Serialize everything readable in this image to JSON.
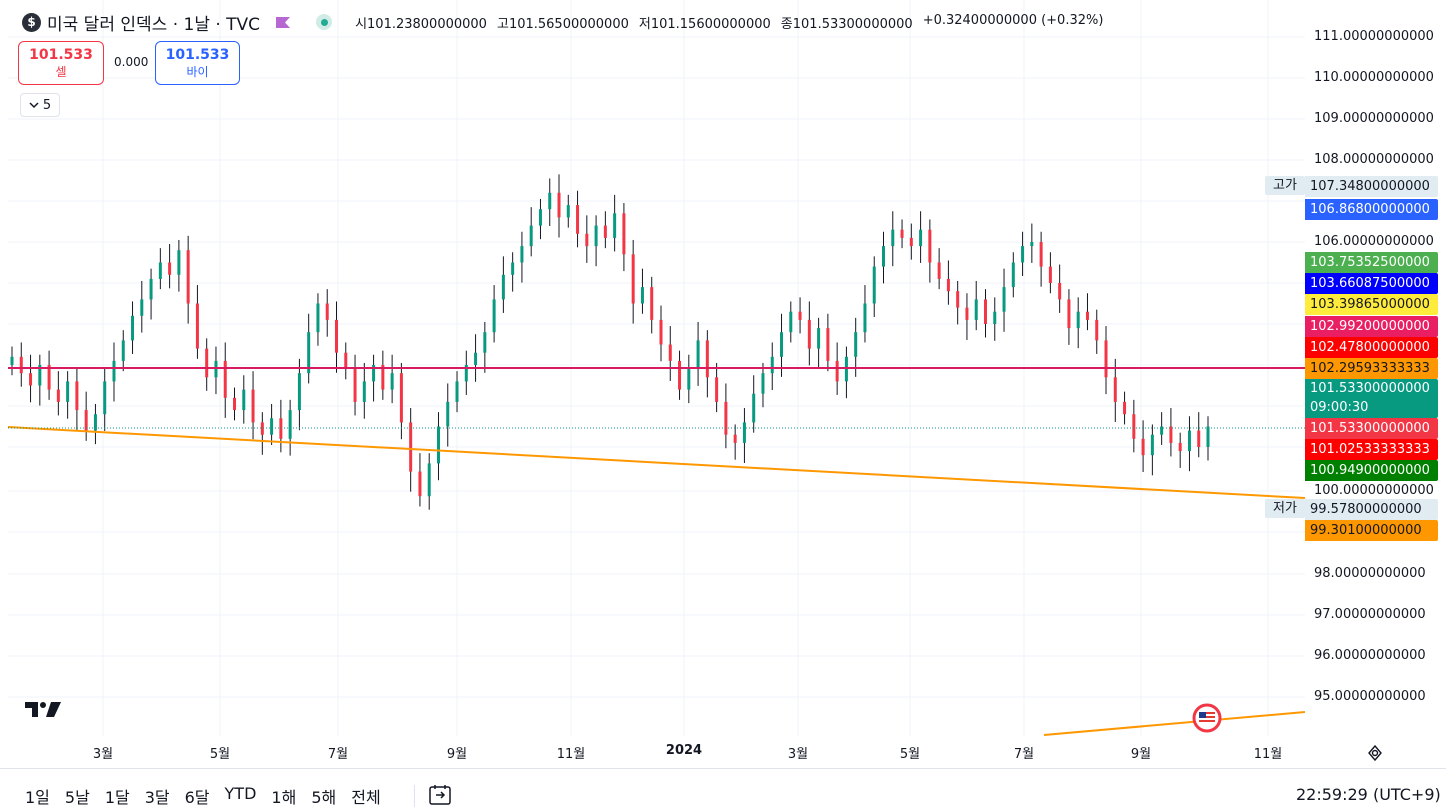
{
  "header": {
    "symbol_badge": "$",
    "symbol_title": "미국 달러 인덱스 · 1날 · TVC",
    "ohlc": [
      {
        "label": "시",
        "value": "101.23800000000"
      },
      {
        "label": "고",
        "value": "101.56500000000"
      },
      {
        "label": "저",
        "value": "101.15600000000"
      },
      {
        "label": "종",
        "value": "101.53300000000"
      }
    ],
    "change": "+0.32400000000 (+0.32%)",
    "flag_color": "#b667d1",
    "status_color": "#22ab94"
  },
  "trade": {
    "sell_price": "101.533",
    "sell_label": "셀",
    "spread": "0.000",
    "buy_price": "101.533",
    "buy_label": "바이"
  },
  "indicator_toggle": {
    "count": "5"
  },
  "price_axis": {
    "ticks": [
      "111.00000000000",
      "110.00000000000",
      "109.00000000000",
      "108.00000000000",
      "106.00000000000",
      "100.00000000000",
      "98.00000000000",
      "97.00000000000",
      "96.00000000000",
      "95.00000000000"
    ],
    "high_tag": "고가",
    "low_tag": "저가",
    "labels": [
      {
        "value": "107.34800000000",
        "color": "#e1ecf2",
        "text_color": "#131722"
      },
      {
        "value": "106.86800000000",
        "color": "#2962ff",
        "text_color": "#ffffff"
      },
      {
        "value": "103.75352500000",
        "color": "#4caf50",
        "text_color": "#ffffff"
      },
      {
        "value": "103.66087500000",
        "color": "#0000ff",
        "text_color": "#ffffff"
      },
      {
        "value": "103.39865000000",
        "color": "#ffeb3b",
        "text_color": "#131722"
      },
      {
        "value": "102.99200000000",
        "color": "#e91e63",
        "text_color": "#ffffff"
      },
      {
        "value": "102.47800000000",
        "color": "#ff0000",
        "text_color": "#ffffff"
      },
      {
        "value": "102.29593333333",
        "color": "#ff9800",
        "text_color": "#131722"
      },
      {
        "value": "101.53300000000",
        "color": "#089981",
        "text_color": "#ffffff"
      },
      {
        "value": "101.53300000000",
        "color": "#f23645",
        "text_color": "#ffffff"
      },
      {
        "value": "101.02533333333",
        "color": "#ff0000",
        "text_color": "#ffffff"
      },
      {
        "value": "100.94900000000",
        "color": "#008000",
        "text_color": "#ffffff"
      },
      {
        "value": "99.57800000000",
        "color": "#e1ecf2",
        "text_color": "#131722"
      },
      {
        "value": "99.30100000000",
        "color": "#ff9800",
        "text_color": "#131722"
      }
    ],
    "countdown": "09:00:30"
  },
  "time_axis": {
    "ticks": [
      {
        "label": "3월",
        "bold": false
      },
      {
        "label": "5월",
        "bold": false
      },
      {
        "label": "7월",
        "bold": false
      },
      {
        "label": "9월",
        "bold": false
      },
      {
        "label": "11월",
        "bold": false
      },
      {
        "label": "2024",
        "bold": true
      },
      {
        "label": "3월",
        "bold": false
      },
      {
        "label": "5월",
        "bold": false
      },
      {
        "label": "7월",
        "bold": false
      },
      {
        "label": "9월",
        "bold": false
      },
      {
        "label": "11월",
        "bold": false
      }
    ]
  },
  "ranges": [
    "1일",
    "5날",
    "1달",
    "3달",
    "6달",
    "YTD",
    "1해",
    "5해",
    "전체"
  ],
  "clock": "22:59:29 (UTC+9)",
  "chart_data": {
    "type": "candlestick",
    "y_range": [
      94.5,
      111.5
    ],
    "closes": [
      103.2,
      102.8,
      102.5,
      103.0,
      102.4,
      102.1,
      102.6,
      101.9,
      101.4,
      101.8,
      102.6,
      103.1,
      103.6,
      104.2,
      104.6,
      105.1,
      105.5,
      105.2,
      105.8,
      104.5,
      103.4,
      102.7,
      103.1,
      102.2,
      101.9,
      102.4,
      101.6,
      101.3,
      101.7,
      101.2,
      101.9,
      102.8,
      103.8,
      104.5,
      104.1,
      103.3,
      102.9,
      102.1,
      102.6,
      103.0,
      102.4,
      102.8,
      101.6,
      100.4,
      99.8,
      100.6,
      101.5,
      102.1,
      102.6,
      103.0,
      103.3,
      103.8,
      104.6,
      105.2,
      105.5,
      105.9,
      106.4,
      106.8,
      107.2,
      106.6,
      106.9,
      106.2,
      105.9,
      106.4,
      106.1,
      106.7,
      105.7,
      104.5,
      104.9,
      104.1,
      103.5,
      103.1,
      102.4,
      102.9,
      103.6,
      102.7,
      102.1,
      101.3,
      101.1,
      101.6,
      102.3,
      102.8,
      103.2,
      103.8,
      104.3,
      104.1,
      103.4,
      103.9,
      103.1,
      102.6,
      103.2,
      103.8,
      104.5,
      105.4,
      105.9,
      106.3,
      106.1,
      105.9,
      106.3,
      105.5,
      105.1,
      104.8,
      104.4,
      104.1,
      104.6,
      104.0,
      104.3,
      104.9,
      105.5,
      105.9,
      106.0,
      105.4,
      105.0,
      104.6,
      103.9,
      104.3,
      104.1,
      103.6,
      102.7,
      102.1,
      101.8,
      101.2,
      100.8,
      101.3,
      101.5,
      101.1,
      100.9,
      101.4,
      101.0,
      101.5
    ]
  }
}
